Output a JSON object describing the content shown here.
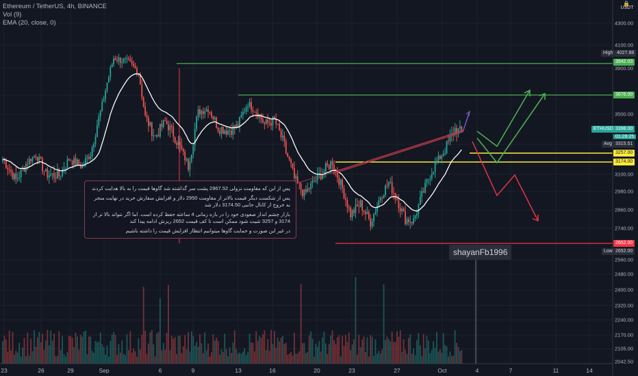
{
  "legend": {
    "title": "Ethereum / TetherUS, 4h, BINANCE",
    "vol": "Vol (9)",
    "ema": "EMA (20, close, 0)"
  },
  "currency": {
    "label": "USDT",
    "icon": "lock-icon"
  },
  "note": {
    "lines": [
      "پس از این که مقاومت نزولی 2967.52 پشت سر گذاشته شد گاوها قیمت را به بالا هدایت کردند",
      "پس از شکست دیگر قیمت بالاتر از مقاومت 2950 دلار و افزایش سفارش خرید در نهایت منجر به خروج از کانال جانبی 3174.50 دلار شد",
      "بازار چشم انداز صعودی خود را در بازه زمانی 4 ساعته حفظ کرده است. اما اگر نتواند بالا تر از 3174 و 3257 تثبیت شود ممکن است تا کف قیمت 2652 ریزش ادامه پیدا کند",
      "در غیر این صورت و حمایت گاوها میتوانیم انتظار افزایش قیمت را داشته باشیم"
    ]
  },
  "author": "shayanFb1996",
  "colors": {
    "bg": "#131722",
    "up": "#26a69a",
    "down": "#ef5350",
    "green_line": "#4caf50",
    "yellow_line": "#ffeb3b",
    "red_line": "#f23645",
    "ema": "#ffffff",
    "grid": "#1e222d"
  },
  "axis": {
    "y_ticks": [
      "4300.00",
      "4100.00",
      "3900.00",
      "3500.00",
      "3100.00",
      "2980.00",
      "2860.00",
      "2740.00",
      "2560.00",
      "2480.00",
      "2400.00",
      "2320.00",
      "2240.00",
      "2170.00",
      "2105.00",
      "2042.50"
    ],
    "x_ticks": [
      "23",
      "26",
      "29",
      "Sep",
      "6",
      "9",
      "13",
      "16",
      "20",
      "23",
      "27",
      "Oct",
      "4",
      "7",
      "11",
      "14"
    ]
  },
  "price_tags": {
    "high": {
      "label": "High",
      "value": "4027.88"
    },
    "r1": {
      "value": "3942.03"
    },
    "r2": {
      "value": "3676.00"
    },
    "current": {
      "label": "ETHUSDT",
      "value": "3398.00",
      "countdown": "01:28:25"
    },
    "avg": {
      "label": "Avg",
      "value": "3315.51"
    },
    "s1": {
      "value": "3257.00"
    },
    "s2": {
      "value": "3174.00"
    },
    "s3": {
      "value": "2652.00"
    },
    "low": {
      "label": "Low",
      "value": "2652.00"
    }
  },
  "chart_data": {
    "type": "candlestick",
    "title": "Ethereum / TetherUS, 4h, BINANCE",
    "indicators": [
      "Vol (9)",
      "EMA (20, close, 0)"
    ],
    "ylim": [
      2042.5,
      4400
    ],
    "levels": [
      3942.03,
      3676.0,
      3257.0,
      3174.0,
      2652.0
    ],
    "high": 4027.88,
    "low": 2652.0,
    "last": 3398.0,
    "avg": 3315.51,
    "anchors": [
      {
        "i": 0,
        "p": 3200
      },
      {
        "i": 8,
        "p": 3060
      },
      {
        "i": 15,
        "p": 3180
      },
      {
        "i": 20,
        "p": 3240
      },
      {
        "i": 26,
        "p": 3100
      },
      {
        "i": 34,
        "p": 3090
      },
      {
        "i": 40,
        "p": 3200
      },
      {
        "i": 48,
        "p": 3150
      },
      {
        "i": 53,
        "p": 3250
      },
      {
        "i": 59,
        "p": 3520
      },
      {
        "i": 63,
        "p": 3780
      },
      {
        "i": 67,
        "p": 3990
      },
      {
        "i": 76,
        "p": 3950
      },
      {
        "i": 82,
        "p": 3870
      },
      {
        "i": 86,
        "p": 3480
      },
      {
        "i": 92,
        "p": 3350
      },
      {
        "i": 98,
        "p": 3450
      },
      {
        "i": 103,
        "p": 3370
      },
      {
        "i": 108,
        "p": 3270
      },
      {
        "i": 112,
        "p": 3150
      },
      {
        "i": 118,
        "p": 3520
      },
      {
        "i": 124,
        "p": 3550
      },
      {
        "i": 130,
        "p": 3410
      },
      {
        "i": 136,
        "p": 3390
      },
      {
        "i": 142,
        "p": 3420
      },
      {
        "i": 148,
        "p": 3600
      },
      {
        "i": 154,
        "p": 3510
      },
      {
        "i": 158,
        "p": 3430
      },
      {
        "i": 164,
        "p": 3460
      },
      {
        "i": 170,
        "p": 3300
      },
      {
        "i": 176,
        "p": 3070
      },
      {
        "i": 182,
        "p": 2960
      },
      {
        "i": 188,
        "p": 3050
      },
      {
        "i": 194,
        "p": 3120
      },
      {
        "i": 199,
        "p": 3180
      },
      {
        "i": 205,
        "p": 3000
      },
      {
        "i": 210,
        "p": 2830
      },
      {
        "i": 216,
        "p": 2900
      },
      {
        "i": 222,
        "p": 2780
      },
      {
        "i": 228,
        "p": 2950
      },
      {
        "i": 233,
        "p": 3040
      },
      {
        "i": 238,
        "p": 2930
      },
      {
        "i": 243,
        "p": 2800
      },
      {
        "i": 248,
        "p": 2790
      },
      {
        "i": 253,
        "p": 2950
      },
      {
        "i": 258,
        "p": 3100
      },
      {
        "i": 263,
        "p": 3200
      },
      {
        "i": 268,
        "p": 3300
      },
      {
        "i": 273,
        "p": 3400
      },
      {
        "i": 277,
        "p": 3380
      }
    ]
  }
}
